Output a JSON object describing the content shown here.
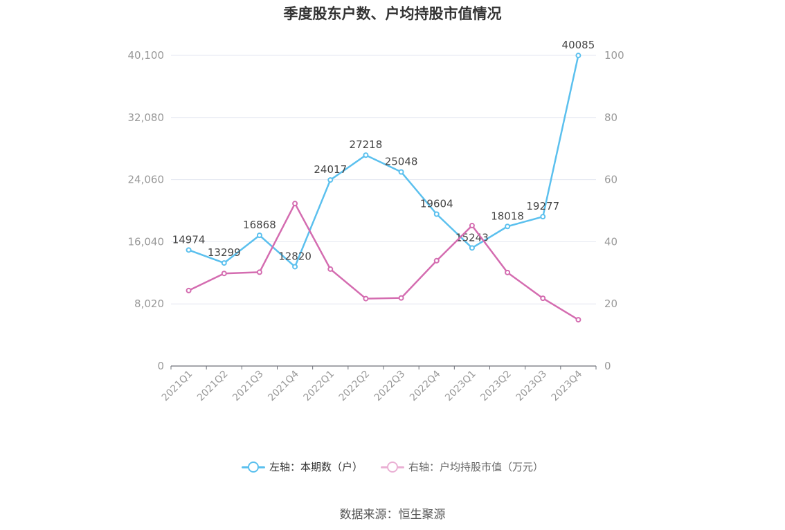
{
  "chart_data": {
    "type": "line",
    "title": "季度股东户数、户均持股市值情况",
    "categories": [
      "2021Q1",
      "2021Q2",
      "2021Q3",
      "2021Q4",
      "2022Q1",
      "2022Q2",
      "2022Q3",
      "2022Q4",
      "2023Q1",
      "2023Q2",
      "2023Q3",
      "2023Q4"
    ],
    "left_axis": {
      "ylim": [
        0,
        40100
      ],
      "ticks": [
        "0",
        "8,020",
        "16,040",
        "24,060",
        "32,080",
        "40,100"
      ]
    },
    "right_axis": {
      "ylim": [
        0,
        100
      ],
      "ticks": [
        "0",
        "20",
        "40",
        "60",
        "80",
        "100"
      ]
    },
    "series": [
      {
        "name": "左轴：本期数（户）",
        "axis": "left",
        "color": "#5bc0ee",
        "values": [
          14974,
          13299,
          16868,
          12820,
          24017,
          27218,
          25048,
          19604,
          15243,
          18018,
          19277,
          40085
        ],
        "labels": [
          "14974",
          "13299",
          "16868",
          "12820",
          "24017",
          "27218",
          "25048",
          "19604",
          "15243",
          "18018",
          "19277",
          "40085"
        ]
      },
      {
        "name": "右轴：户均持股市值（万元）",
        "axis": "right",
        "color": "#d46cb0",
        "values": [
          24.3,
          29.8,
          30.2,
          52.3,
          31.2,
          21.7,
          21.9,
          33.9,
          45.2,
          30.1,
          21.8,
          14.9
        ]
      }
    ],
    "grid": true,
    "legend_position": "bottom"
  },
  "source": "数据来源：恒生聚源"
}
